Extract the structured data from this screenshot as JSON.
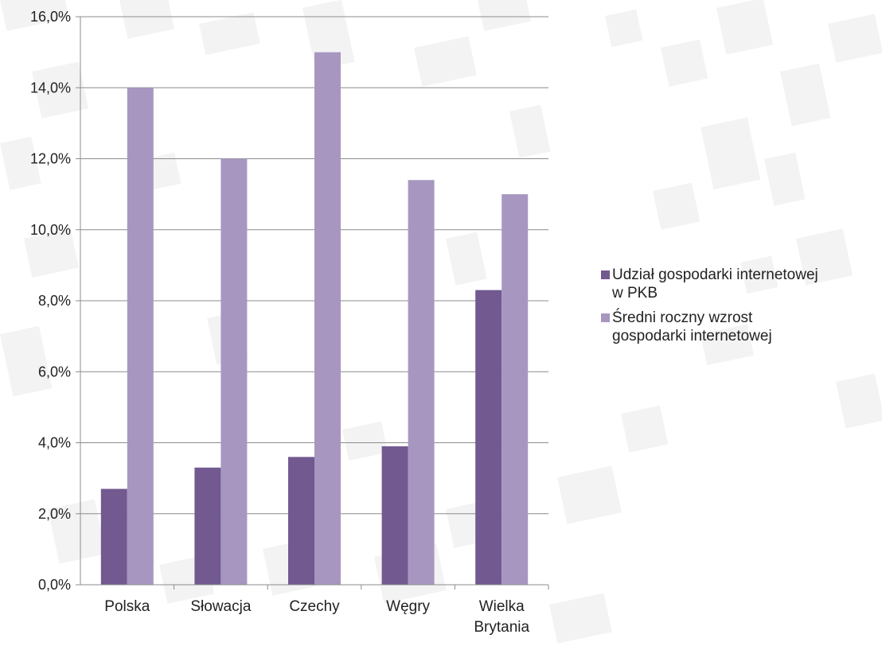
{
  "chart_data": {
    "type": "bar",
    "categories": [
      "Polska",
      "Słowacja",
      "Czechy",
      "Węgry",
      "Wielka Brytania"
    ],
    "category_lines": [
      [
        "Polska"
      ],
      [
        "Słowacja"
      ],
      [
        "Czechy"
      ],
      [
        "Węgry"
      ],
      [
        "Wielka",
        "Brytania"
      ]
    ],
    "series": [
      {
        "name": "Udział gospodarki internetowej w PKB",
        "name_lines": [
          "Udział gospodarki internetowej",
          "w PKB"
        ],
        "values": [
          2.7,
          3.3,
          3.6,
          3.9,
          8.3
        ],
        "color": "#725990"
      },
      {
        "name": "Średni roczny wzrost gospodarki internetowej",
        "name_lines": [
          "Średni roczny wzrost",
          "gospodarki internetowej"
        ],
        "values": [
          14.0,
          12.0,
          15.0,
          11.4,
          11.0
        ],
        "color": "#a797c0"
      }
    ],
    "ylim": [
      0,
      16
    ],
    "yticks": [
      "0,0%",
      "2,0%",
      "4,0%",
      "6,0%",
      "8,0%",
      "10,0%",
      "12,0%",
      "14,0%",
      "16,0%"
    ],
    "grid": true,
    "legend_position": "right",
    "title": "",
    "xlabel": "",
    "ylabel": ""
  }
}
